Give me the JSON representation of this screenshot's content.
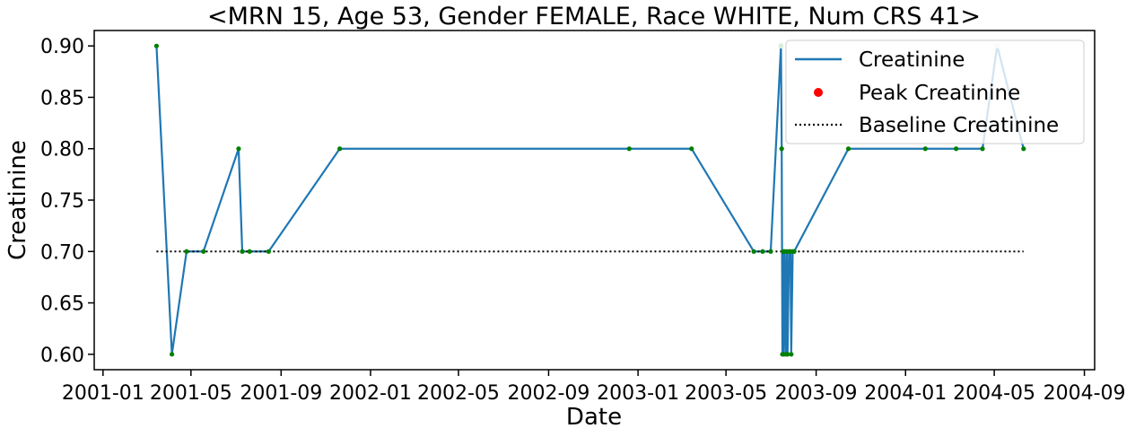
{
  "chart_data": {
    "type": "line",
    "title": "<MRN 15, Age 53, Gender FEMALE, Race WHITE, Num CRS 41>",
    "xlabel": "Date",
    "ylabel": "Creatinine",
    "xlim": [
      "2000-12-20",
      "2004-09-15"
    ],
    "ylim": [
      0.585,
      0.915
    ],
    "x_ticks": [
      "2001-01",
      "2001-05",
      "2001-09",
      "2002-01",
      "2002-05",
      "2002-09",
      "2003-01",
      "2003-05",
      "2003-09",
      "2004-01",
      "2004-05",
      "2004-09"
    ],
    "y_ticks": [
      "0.60",
      "0.65",
      "0.70",
      "0.75",
      "0.80",
      "0.85",
      "0.90"
    ],
    "legend": {
      "position": "top-right",
      "entries": [
        "Creatinine",
        "Peak Creatinine",
        "Baseline Creatinine"
      ]
    },
    "series": [
      {
        "name": "Creatinine",
        "style": "line+markers",
        "color": "#1f77b4",
        "marker_color": "#008000",
        "x": [
          "2001-03-15",
          "2001-04-05",
          "2001-04-25",
          "2001-05-18",
          "2001-07-05",
          "2001-07-10",
          "2001-07-20",
          "2001-08-15",
          "2001-11-20",
          "2002-12-20",
          "2003-03-15",
          "2003-06-08",
          "2003-06-20",
          "2003-07-01",
          "2003-07-15",
          "2003-07-16",
          "2003-07-17",
          "2003-07-18",
          "2003-07-19",
          "2003-07-20",
          "2003-07-22",
          "2003-07-23",
          "2003-07-24",
          "2003-07-26",
          "2003-07-28",
          "2003-07-29",
          "2003-07-31",
          "2003-08-02",
          "2003-10-15",
          "2004-01-28",
          "2004-03-10",
          "2004-04-15",
          "2004-05-05",
          "2004-06-10"
        ],
        "y": [
          0.9,
          0.6,
          0.7,
          0.7,
          0.8,
          0.7,
          0.7,
          0.7,
          0.8,
          0.8,
          0.8,
          0.7,
          0.7,
          0.7,
          0.9,
          0.8,
          0.6,
          0.7,
          0.6,
          0.7,
          0.6,
          0.7,
          0.6,
          0.7,
          0.7,
          0.6,
          0.7,
          0.7,
          0.8,
          0.8,
          0.8,
          0.8,
          0.9,
          0.8
        ]
      },
      {
        "name": "Peak Creatinine",
        "style": "markers",
        "color": "#d9eed9",
        "x": [
          "2003-07-15",
          "2004-05-05"
        ],
        "y": [
          0.9,
          0.9
        ]
      },
      {
        "name": "Baseline Creatinine",
        "style": "dotted",
        "color": "#000000",
        "x": [
          "2001-03-15",
          "2004-06-10"
        ],
        "y": [
          0.7,
          0.7
        ]
      }
    ]
  }
}
